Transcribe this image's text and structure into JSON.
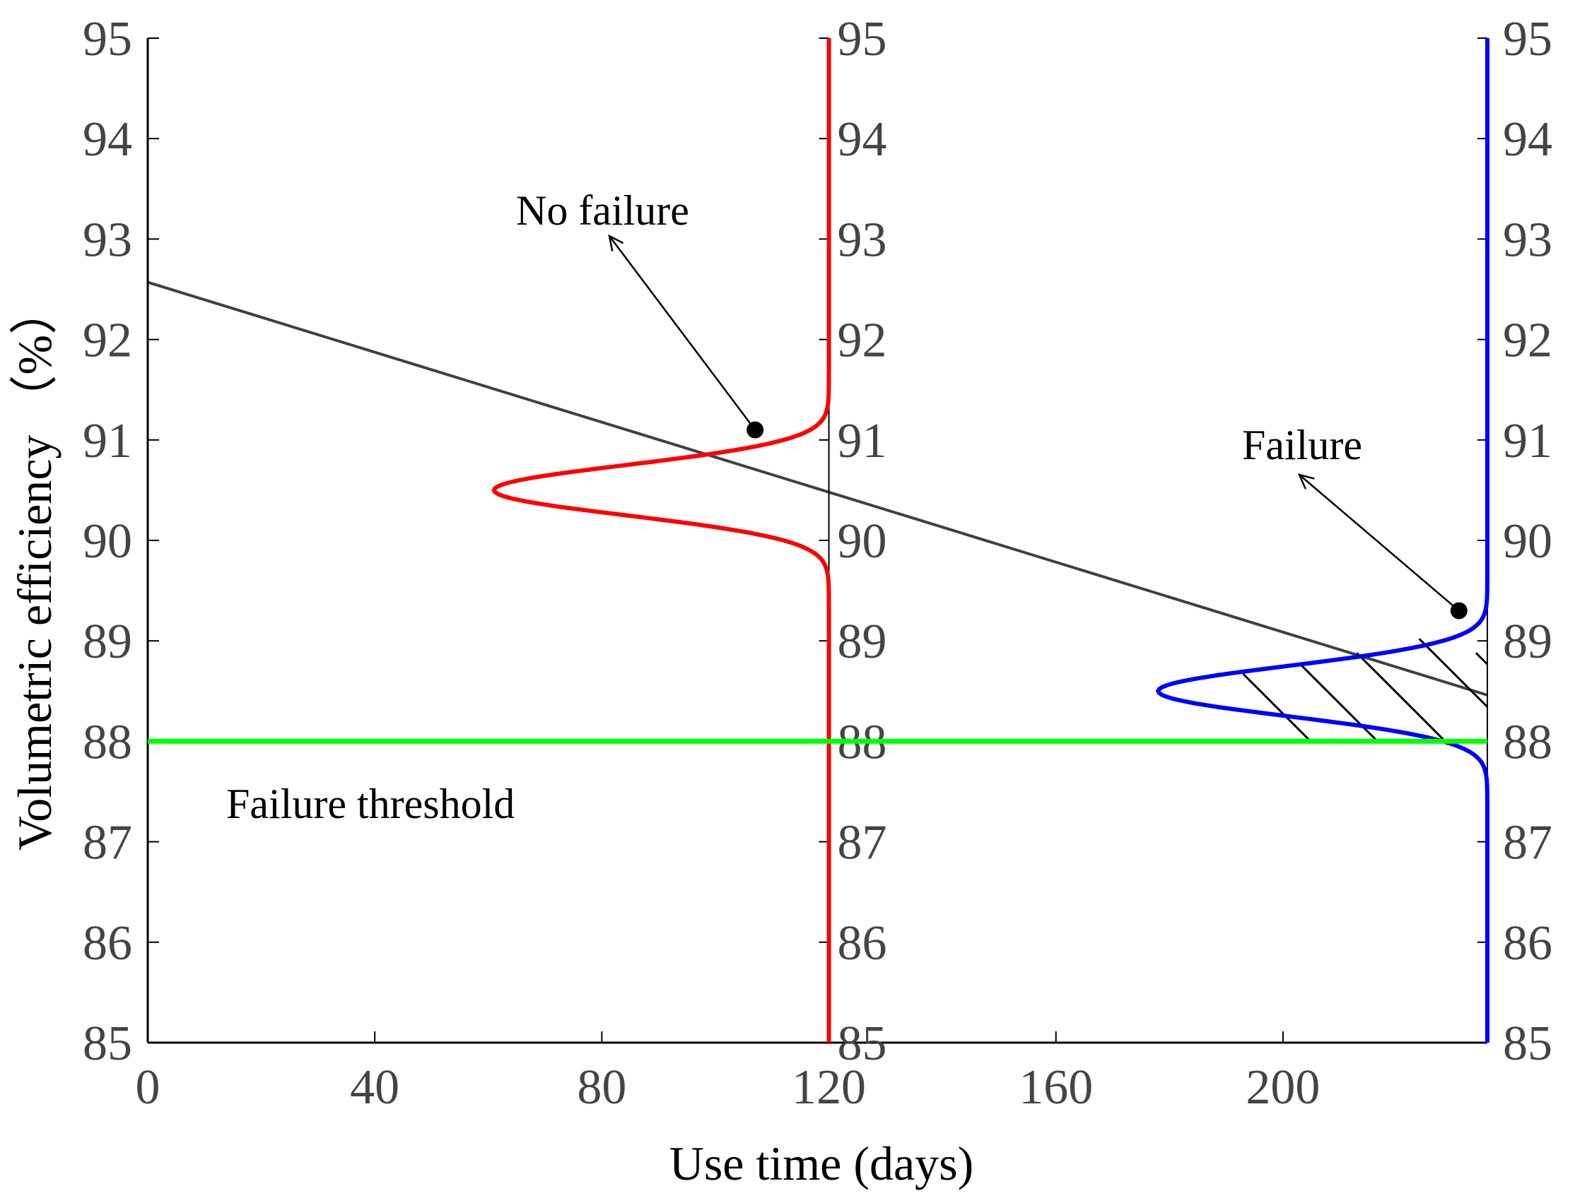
{
  "chart_data": {
    "type": "line",
    "title": "",
    "xlabel": "Use time (days)",
    "ylabel": "Volumetric efficiency （%）",
    "xlim": [
      0,
      236
    ],
    "ylim": [
      85,
      95
    ],
    "x_ticks": [
      "0",
      "40",
      "80",
      "120",
      "160",
      "200"
    ],
    "y_ticks": [
      "85",
      "86",
      "87",
      "88",
      "89",
      "90",
      "91",
      "92",
      "93",
      "94",
      "95"
    ],
    "grid": false,
    "colors": {
      "trend": "#000000",
      "pdf_no_failure": "#ff0000",
      "pdf_failure": "#0000ff",
      "threshold": "#00ff00",
      "axis": "#000000"
    },
    "series": [
      {
        "type": "line",
        "x": [
          0,
          236
        ],
        "y": [
          92.57,
          88.46
        ]
      }
    ],
    "threshold": {
      "y": 88,
      "label": "Failure threshold"
    },
    "distributions": [
      {
        "base_x": 120,
        "mean": 90.5,
        "sd": 0.25,
        "peak_width_days": 59,
        "color": "#ff0000",
        "label": "No failure"
      },
      {
        "base_x": 236,
        "mean": 88.5,
        "sd": 0.25,
        "peak_width_days": 58,
        "color": "#0000ff",
        "label": "Failure",
        "shaded_below_trend_above": 88
      }
    ],
    "annotations": [
      {
        "text": "No failure",
        "point": [
          107,
          91.1
        ]
      },
      {
        "text": "Failure",
        "point": [
          231,
          89.3
        ]
      }
    ]
  }
}
